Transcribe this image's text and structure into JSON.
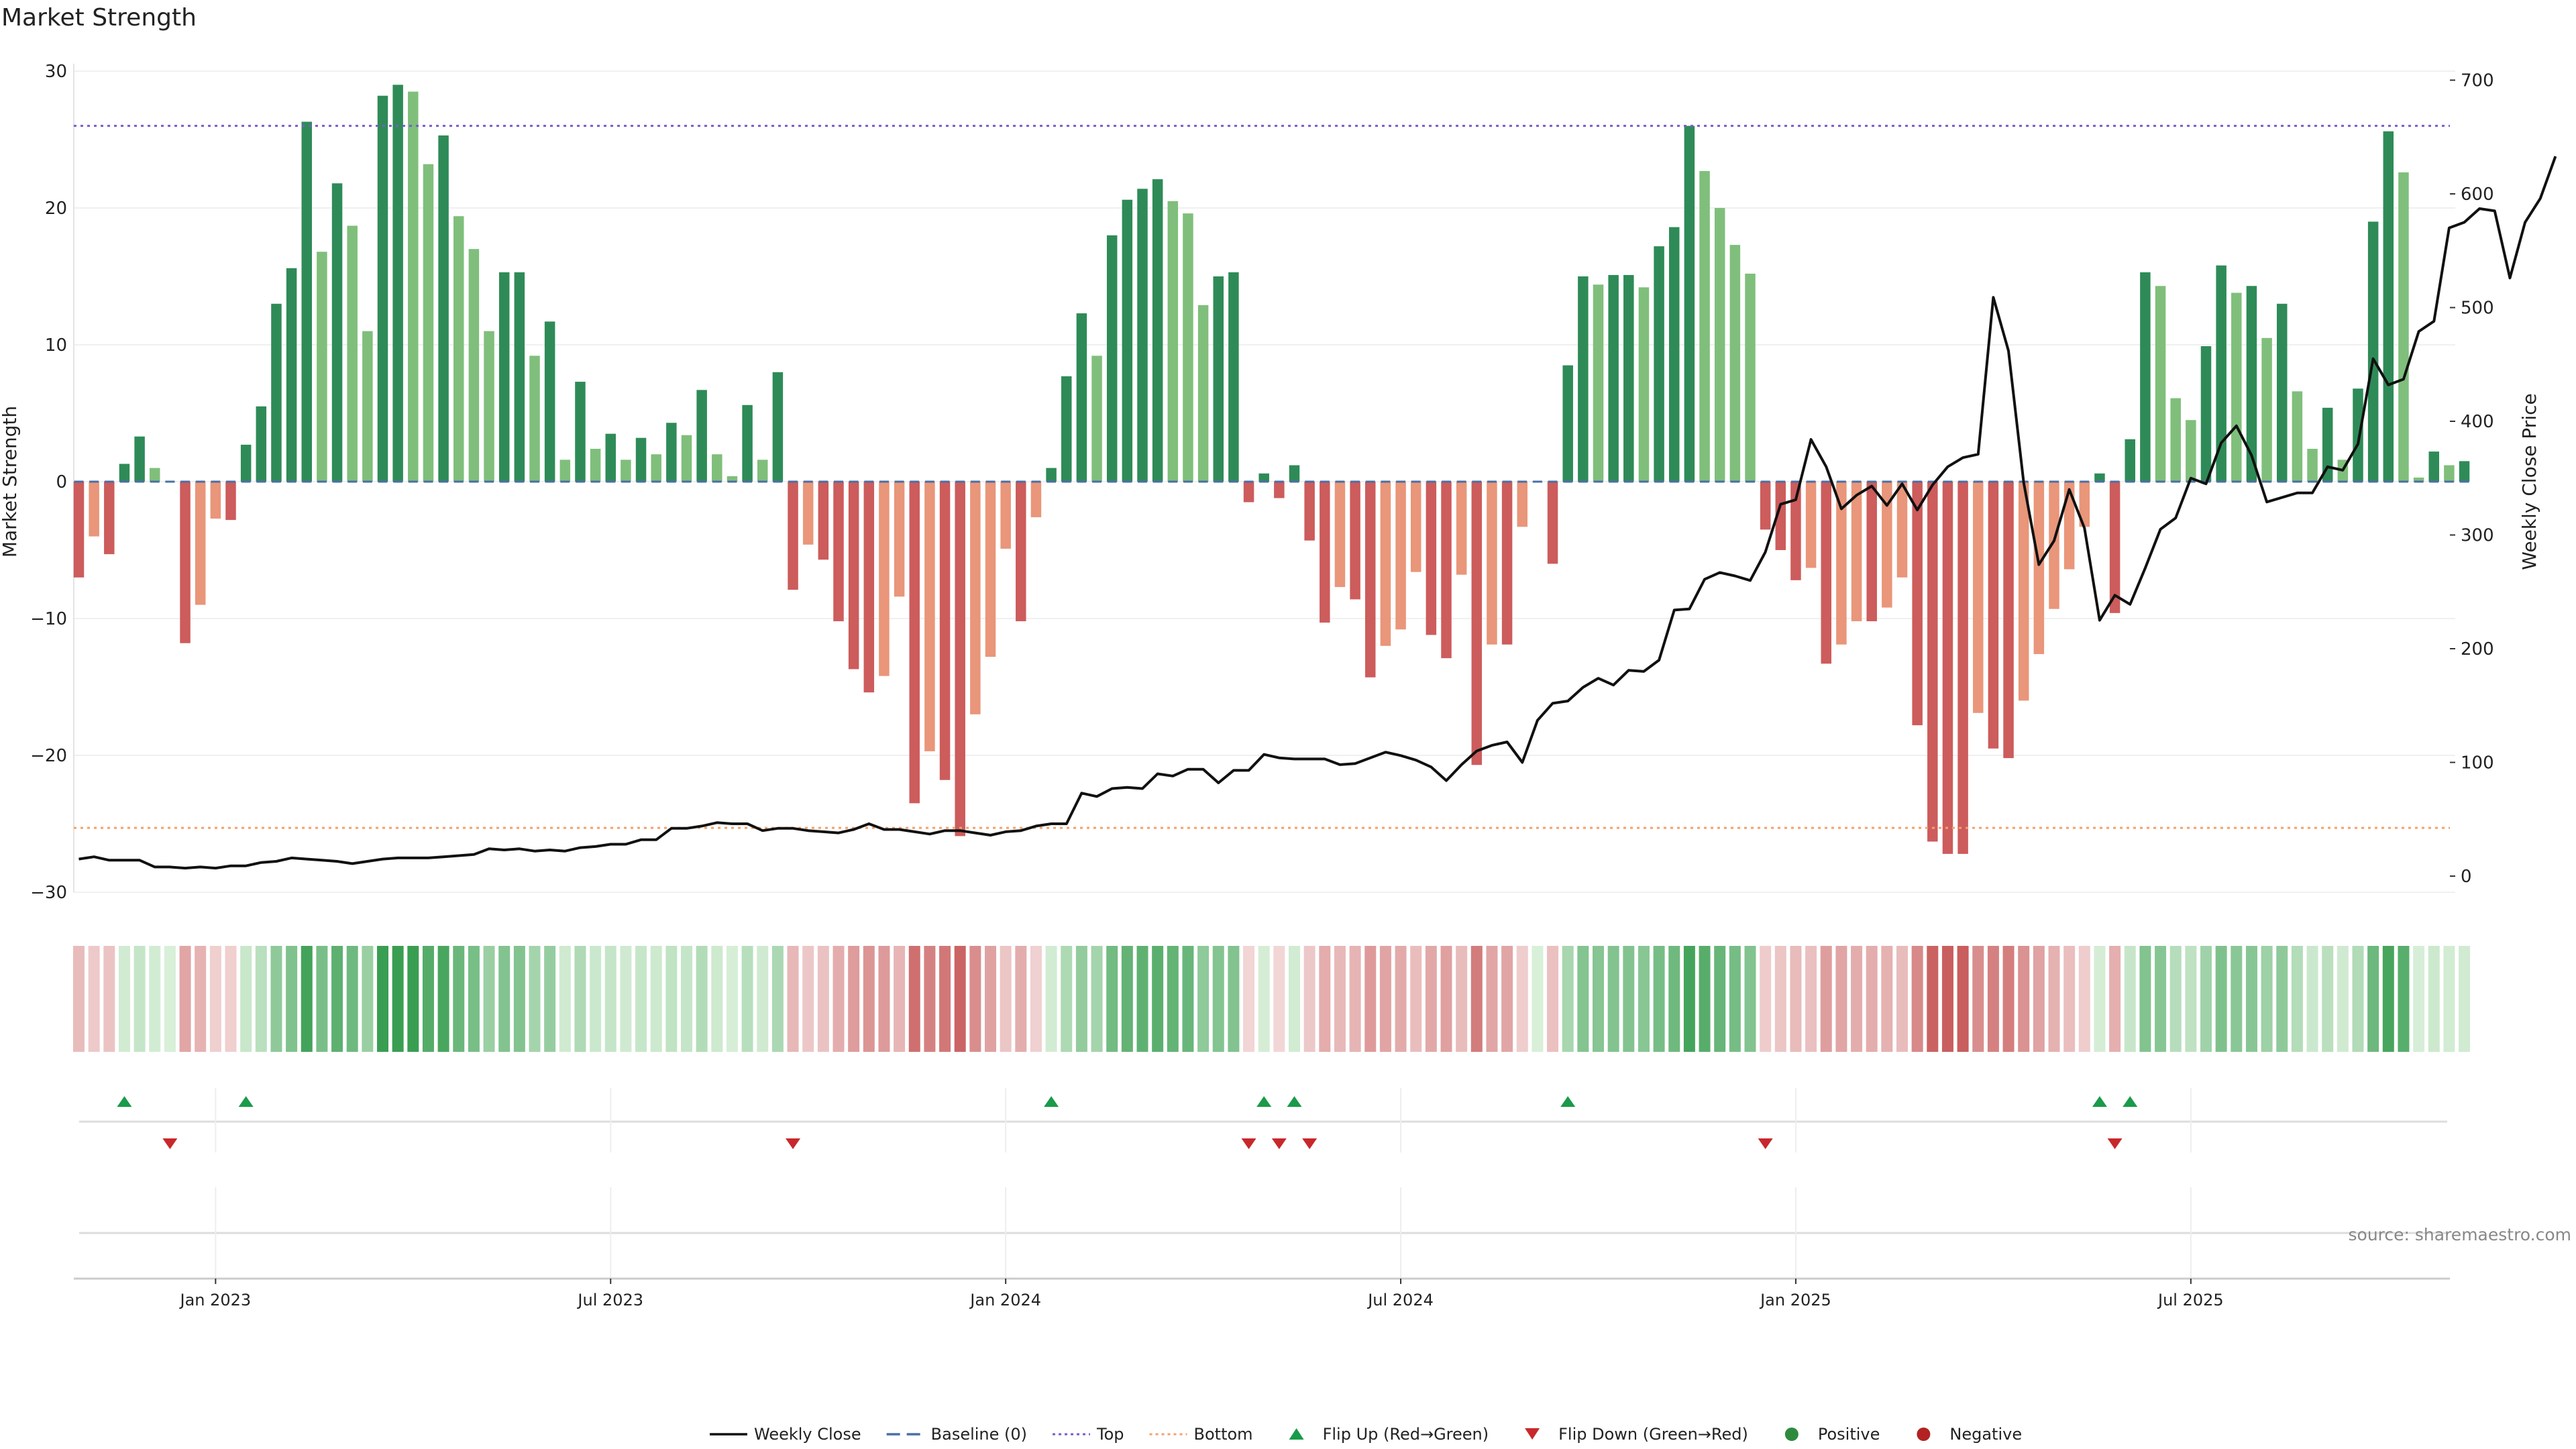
{
  "chart_data": {
    "type": "bar",
    "title": "Market Strength",
    "ylabel_left": "Market Strength",
    "ylabel_right": "Weekly Close Price",
    "ylim_left": [
      -30,
      30
    ],
    "ylim_right": [
      -12,
      700
    ],
    "yticks_left": [
      30,
      20,
      10,
      0,
      -10,
      -20,
      -30
    ],
    "yticks_left_labels": [
      "30",
      "20",
      "10",
      "0",
      "−10",
      "−20",
      "−30"
    ],
    "yticks_right": [
      700,
      600,
      500,
      400,
      300,
      200,
      100,
      0
    ],
    "top_level": 26,
    "bottom_level": -25.3,
    "x_ticks": [
      "Jan 2023",
      "Jul 2023",
      "Jan 2024",
      "Jul 2024",
      "Jan 2025",
      "Jul 2025"
    ],
    "x_tick_week_index": [
      9,
      35,
      61,
      87,
      113,
      139
    ],
    "source": "source: sharemaestro.com",
    "legend": [
      {
        "label": "Weekly Close",
        "kind": "solid-line",
        "color": "#111111"
      },
      {
        "label": "Baseline (0)",
        "kind": "dashed-line",
        "color": "#4a6fa5"
      },
      {
        "label": "Top",
        "kind": "dotted-line",
        "color": "#7b5bc9"
      },
      {
        "label": "Bottom",
        "kind": "dotted-line",
        "color": "#f4a06a"
      },
      {
        "label": "Flip Up (Red→Green)",
        "kind": "triangle-up",
        "color": "#1a9a4a"
      },
      {
        "label": "Flip Down (Green→Red)",
        "kind": "triangle-down",
        "color": "#c8282c"
      },
      {
        "label": "Positive",
        "kind": "dot",
        "color": "#2e8b3e"
      },
      {
        "label": "Negative",
        "kind": "dot",
        "color": "#b22222"
      }
    ],
    "colors": {
      "pos_dark": "#2e8b57",
      "pos_light": "#7fbf7b",
      "neg_dark": "#cd5c5c",
      "neg_light": "#e9967a",
      "price_line": "#111111",
      "top_line": "#7b5bc9",
      "bottom_line": "#f4a06a",
      "baseline": "#4a6fa5"
    },
    "strength": [
      -7,
      -4,
      -5.3,
      1.3,
      3.3,
      1,
      0,
      -11.8,
      -9,
      -2.7,
      -2.8,
      2.7,
      5.5,
      13,
      15.6,
      26.3,
      16.8,
      21.8,
      18.7,
      11,
      28.2,
      29,
      28.5,
      23.2,
      25.3,
      19.4,
      17,
      11,
      15.3,
      15.3,
      9.2,
      11.7,
      1.6,
      7.3,
      2.4,
      3.5,
      1.6,
      3.2,
      2,
      4.3,
      3.4,
      6.7,
      2,
      0.4,
      5.6,
      1.6,
      8,
      -7.9,
      -4.6,
      -5.7,
      -10.2,
      -13.7,
      -15.4,
      -14.2,
      -8.4,
      -23.5,
      -19.7,
      -21.8,
      -25.9,
      -17,
      -12.8,
      -4.9,
      -10.2,
      -2.6,
      1,
      7.7,
      12.3,
      9.2,
      18,
      20.6,
      21.4,
      22.1,
      20.5,
      19.6,
      12.9,
      15,
      15.3,
      -1.5,
      0.6,
      -1.2,
      1.2,
      -4.3,
      -10.3,
      -7.7,
      -8.6,
      -14.3,
      -12,
      -10.8,
      -6.6,
      -11.2,
      -12.9,
      -6.8,
      -20.7,
      -11.9,
      -11.9,
      -3.3,
      0,
      -6,
      8.5,
      15,
      14.4,
      15.1,
      15.1,
      14.2,
      17.2,
      18.6,
      26,
      22.7,
      20,
      17.3,
      15.2,
      -3.5,
      -5,
      -7.2,
      -6.3,
      -13.3,
      -11.9,
      -10.2,
      -10.2,
      -9.2,
      -7,
      -17.8,
      -26.3,
      -27.2,
      -27.2,
      -16.9,
      -19.5,
      -20.2,
      -16,
      -12.6,
      -9.3,
      -6.4,
      -3.3,
      0.6,
      -9.6,
      3.1,
      15.3,
      14.3,
      6.1,
      4.5,
      9.9,
      15.8,
      13.8,
      14.3,
      10.5,
      13,
      6.6,
      2.4,
      5.4,
      1.6,
      6.8,
      19,
      25.6,
      22.6,
      0.3,
      2.2,
      1.2,
      1.5
    ],
    "price": [
      15,
      17,
      14,
      14,
      14,
      8,
      8,
      7,
      8,
      7,
      9,
      9,
      12,
      13,
      16,
      15,
      14,
      13,
      11,
      13,
      15,
      16,
      16,
      16,
      17,
      18,
      19,
      24,
      23,
      24,
      22,
      23,
      22,
      25,
      26,
      28,
      28,
      32,
      32,
      42,
      42,
      44,
      47,
      46,
      46,
      40,
      42,
      42,
      40,
      39,
      38,
      41,
      46,
      41,
      41,
      39,
      37,
      40,
      40,
      38,
      36,
      39,
      40,
      44,
      46,
      46,
      73,
      70,
      77,
      78,
      77,
      90,
      88,
      94,
      94,
      82,
      93,
      93,
      107,
      104,
      103,
      103,
      103,
      98,
      99,
      104,
      109,
      106,
      102,
      96,
      84,
      98,
      110,
      115,
      118,
      100,
      137,
      152,
      154,
      166,
      174,
      168,
      181,
      180,
      190,
      234,
      235,
      261,
      267,
      264,
      260,
      285,
      327,
      331,
      384,
      360,
      323,
      335,
      343,
      326,
      345,
      322,
      344,
      360,
      368,
      371,
      509,
      462,
      346,
      274,
      295,
      340,
      306,
      225,
      247,
      239,
      271,
      305,
      315,
      350,
      345,
      381,
      396,
      370,
      329,
      333,
      337,
      337,
      360,
      357,
      380,
      455,
      432,
      437,
      479,
      488,
      570,
      575,
      587,
      585,
      526,
      575,
      596,
      633
    ]
  }
}
